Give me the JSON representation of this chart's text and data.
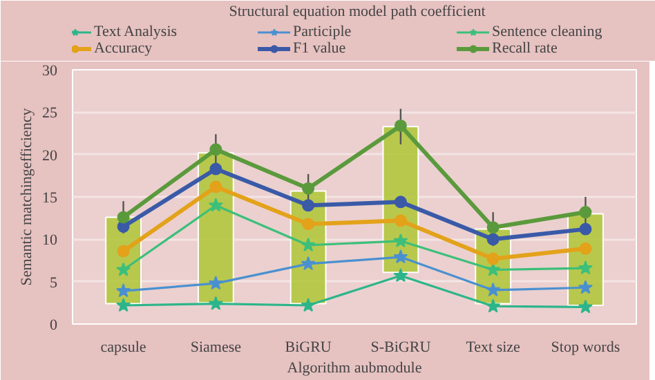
{
  "chart_data": {
    "type": "line",
    "title": "Structural equation model path coefficient",
    "xlabel": "Algorithm aubmodule",
    "ylabel": "Semantic matchingefficiency",
    "categories": [
      "capsule",
      "Siamese",
      "BiGRU",
      "S-BiGRU",
      "Text size",
      "Stop words"
    ],
    "ylim": [
      0,
      30
    ],
    "yticks": [
      0,
      5,
      10,
      15,
      20,
      25,
      30
    ],
    "grid": "y",
    "legend": "top",
    "series": [
      {
        "type": "bar",
        "color": "#b3c63e",
        "base": [
          2.4,
          2.5,
          2.4,
          6.1,
          2.4,
          2.2
        ],
        "values": [
          10.2,
          17.7,
          13.3,
          17.2,
          8.8,
          10.8
        ],
        "errors": [
          1.9,
          2.2,
          2.0,
          2.1,
          2.0,
          2.0
        ]
      },
      {
        "name": "Text Analysis",
        "color": "#2cb58a",
        "marker": "star",
        "values": [
          2.2,
          2.4,
          2.2,
          5.7,
          2.1,
          2.0
        ]
      },
      {
        "name": "Participle",
        "color": "#4a90d0",
        "marker": "star",
        "values": [
          3.9,
          4.8,
          7.1,
          7.9,
          4.0,
          4.3
        ]
      },
      {
        "name": "Sentence cleaning",
        "color": "#3cbf7a",
        "marker": "star",
        "values": [
          6.4,
          14.0,
          9.3,
          9.8,
          6.4,
          6.6
        ]
      },
      {
        "name": "Accuracy",
        "color": "#e3a21a",
        "marker": "circle",
        "values": [
          8.6,
          16.2,
          11.8,
          12.2,
          7.7,
          8.9
        ]
      },
      {
        "name": "F1 value",
        "color": "#3a5aa8",
        "marker": "circle",
        "values": [
          11.5,
          18.3,
          14.0,
          14.4,
          10.0,
          11.2
        ]
      },
      {
        "name": "Recall rate",
        "color": "#5b9a3c",
        "marker": "circle",
        "values": [
          12.6,
          20.6,
          16.0,
          23.4,
          11.4,
          13.2
        ]
      }
    ]
  }
}
